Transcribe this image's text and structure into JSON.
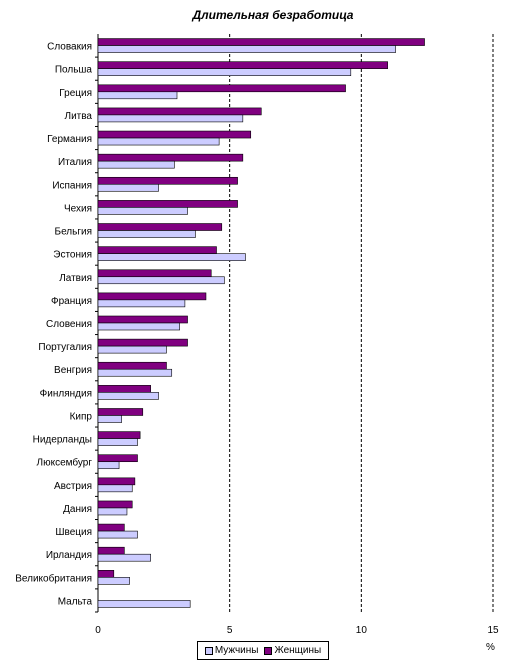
{
  "chart_data": {
    "type": "bar",
    "orientation": "horizontal",
    "title": "Длительная безработица",
    "xlabel": "%",
    "xlim": [
      0,
      15
    ],
    "xticks": [
      "0",
      "5",
      "10",
      "15"
    ],
    "grid": "vertical dashed at 5, 10, 15",
    "legend_position": "bottom",
    "categories": [
      "Словакия",
      "Польша",
      "Греция",
      "Литва",
      "Германия",
      "Италия",
      "Испания",
      "Чехия",
      "Бельгия",
      "Эстония",
      "Латвия",
      "Франция",
      "Словения",
      "Португалия",
      "Венгрия",
      "Финляндия",
      "Кипр",
      "Нидерланды",
      "Люксембург",
      "Австрия",
      "Дания",
      "Швеция",
      "Ирландия",
      "Великобритания",
      "Мальта"
    ],
    "series": [
      {
        "name": "Женщины",
        "color": "#800080",
        "values": [
          12.4,
          11.0,
          9.4,
          6.2,
          5.8,
          5.5,
          5.3,
          5.3,
          4.7,
          4.5,
          4.3,
          4.1,
          3.4,
          3.4,
          2.6,
          2.0,
          1.7,
          1.6,
          1.5,
          1.4,
          1.3,
          1.0,
          1.0,
          0.6,
          0.0
        ]
      },
      {
        "name": "Мужчины",
        "color": "#CCCCFF",
        "values": [
          11.3,
          9.6,
          3.0,
          5.5,
          4.6,
          2.9,
          2.3,
          3.4,
          3.7,
          5.6,
          4.8,
          3.3,
          3.1,
          2.6,
          2.8,
          2.3,
          0.9,
          1.5,
          0.8,
          1.3,
          1.1,
          1.5,
          2.0,
          1.2,
          3.5
        ]
      }
    ]
  }
}
